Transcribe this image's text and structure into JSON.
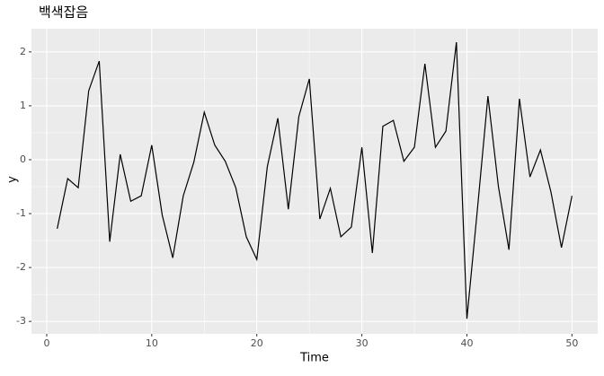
{
  "chart_data": {
    "type": "line",
    "title": "백색잡음",
    "x_label": "Time",
    "y_label": "y",
    "x": [
      1,
      2,
      3,
      4,
      5,
      6,
      7,
      8,
      9,
      10,
      11,
      12,
      13,
      14,
      15,
      16,
      17,
      18,
      19,
      20,
      21,
      22,
      23,
      24,
      25,
      26,
      27,
      28,
      29,
      30,
      31,
      32,
      33,
      34,
      35,
      36,
      37,
      38,
      39,
      40,
      41,
      42,
      43,
      44,
      45,
      46,
      47,
      48,
      49,
      50
    ],
    "values": [
      -1.28,
      -0.35,
      -0.52,
      1.28,
      1.83,
      -1.52,
      0.1,
      -0.77,
      -0.67,
      0.27,
      -1.03,
      -1.82,
      -0.67,
      -0.05,
      0.88,
      0.27,
      -0.03,
      -0.52,
      -1.43,
      -1.85,
      -0.13,
      0.77,
      -0.92,
      0.8,
      1.5,
      -1.1,
      -0.53,
      -1.43,
      -1.25,
      0.23,
      -1.73,
      0.62,
      0.73,
      -0.03,
      0.23,
      1.78,
      0.23,
      0.53,
      2.18,
      -2.95,
      -0.92,
      1.18,
      -0.5,
      -1.67,
      1.13,
      -0.32,
      0.18,
      -0.6,
      -1.63,
      -0.67
    ],
    "color": "#000000",
    "xlim": [
      -1.45,
      52.45
    ],
    "xticks": [
      0,
      10,
      20,
      30,
      40,
      50
    ],
    "ylim": [
      -3.23,
      2.43
    ],
    "yticks": [
      -3,
      -2,
      -1,
      0,
      1,
      2
    ],
    "grid": true
  }
}
